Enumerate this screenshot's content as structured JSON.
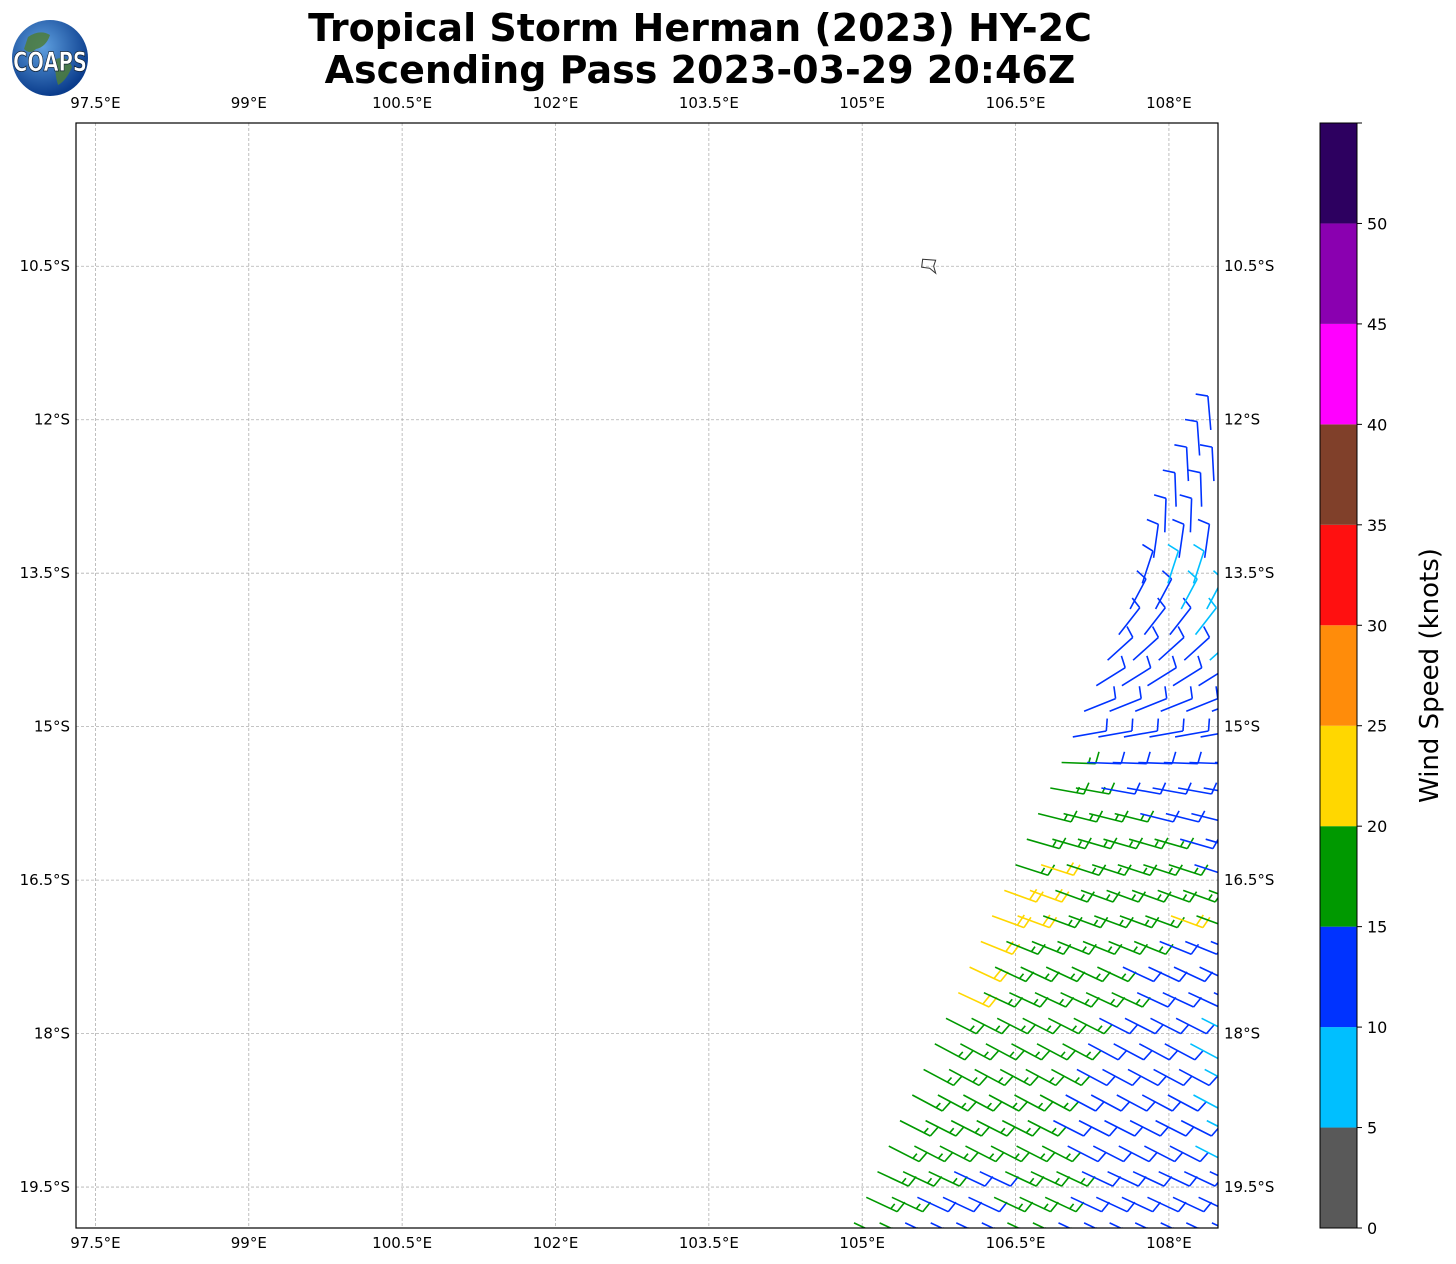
{
  "title": {
    "line1": "Tropical Storm Herman (2023) HY-2C",
    "line2": "Ascending Pass 2023-03-29 20:46Z"
  },
  "logo": {
    "text": "COAPS"
  },
  "map": {
    "lon_range": [
      97.31,
      108.48
    ],
    "lat_range": [
      -19.9,
      -9.1
    ],
    "lon_ticks": [
      {
        "v": 97.5,
        "label": "97.5°E"
      },
      {
        "v": 99,
        "label": "99°E"
      },
      {
        "v": 100.5,
        "label": "100.5°E"
      },
      {
        "v": 102,
        "label": "102°E"
      },
      {
        "v": 103.5,
        "label": "103.5°E"
      },
      {
        "v": 105,
        "label": "105°E"
      },
      {
        "v": 106.5,
        "label": "106.5°E"
      },
      {
        "v": 108,
        "label": "108°E"
      }
    ],
    "lat_ticks": [
      {
        "v": -10.5,
        "label": "10.5°S"
      },
      {
        "v": -12,
        "label": "12°S"
      },
      {
        "v": -13.5,
        "label": "13.5°S"
      },
      {
        "v": -15,
        "label": "15°S"
      },
      {
        "v": -16.5,
        "label": "16.5°S"
      },
      {
        "v": -18,
        "label": "18°S"
      },
      {
        "v": -19.5,
        "label": "19.5°S"
      }
    ],
    "grid": true,
    "land": [
      {
        "name": "Christmas Island",
        "lon": 105.65,
        "lat": -10.49
      }
    ]
  },
  "wind_barbs": {
    "units": "knots",
    "lon_spacing": 0.25,
    "rows": [
      {
        "lat": -19.85,
        "lon0": 104.92,
        "dir": 115,
        "kt": [
          17,
          17,
          12,
          12,
          12,
          12,
          17,
          17,
          12,
          12,
          12,
          12,
          12,
          12,
          12
        ]
      },
      {
        "lat": -19.6,
        "lon0": 105.04,
        "dir": 115,
        "kt": [
          17,
          17,
          12,
          12,
          12,
          17,
          17,
          17,
          12,
          12,
          12,
          12,
          12,
          12
        ]
      },
      {
        "lat": -19.35,
        "lon0": 105.15,
        "dir": 115,
        "kt": [
          17,
          17,
          17,
          12,
          12,
          17,
          17,
          17,
          12,
          12,
          12,
          12,
          12,
          12
        ]
      },
      {
        "lat": -19.1,
        "lon0": 105.26,
        "dir": 117,
        "kt": [
          17,
          17,
          17,
          17,
          17,
          17,
          17,
          12,
          12,
          12,
          12,
          12,
          8
        ]
      },
      {
        "lat": -18.85,
        "lon0": 105.37,
        "dir": 117,
        "kt": [
          17,
          17,
          17,
          17,
          17,
          17,
          12,
          12,
          12,
          12,
          12,
          12,
          8
        ]
      },
      {
        "lat": -18.6,
        "lon0": 105.49,
        "dir": 118,
        "kt": [
          17,
          17,
          17,
          17,
          17,
          17,
          12,
          12,
          12,
          12,
          12,
          8
        ]
      },
      {
        "lat": -18.35,
        "lon0": 105.6,
        "dir": 118,
        "kt": [
          17,
          17,
          17,
          17,
          17,
          17,
          12,
          12,
          12,
          12,
          12,
          8
        ]
      },
      {
        "lat": -18.1,
        "lon0": 105.71,
        "dir": 118,
        "kt": [
          17,
          17,
          17,
          17,
          17,
          17,
          12,
          12,
          12,
          12,
          8
        ]
      },
      {
        "lat": -17.85,
        "lon0": 105.82,
        "dir": 117,
        "kt": [
          17,
          17,
          17,
          17,
          17,
          17,
          12,
          12,
          12,
          12,
          8
        ]
      },
      {
        "lat": -17.6,
        "lon0": 105.94,
        "dir": 115,
        "kt": [
          22,
          17,
          17,
          17,
          17,
          17,
          17,
          12,
          12,
          12,
          12
        ]
      },
      {
        "lat": -17.35,
        "lon0": 106.05,
        "dir": 115,
        "kt": [
          22,
          17,
          17,
          17,
          17,
          17,
          12,
          12,
          12,
          12
        ]
      },
      {
        "lat": -17.1,
        "lon0": 106.16,
        "dir": 112,
        "kt": [
          22,
          17,
          17,
          17,
          17,
          17,
          17,
          12,
          12,
          12
        ]
      },
      {
        "lat": -16.85,
        "lon0": 106.27,
        "dir": 110,
        "kt": [
          22,
          22,
          17,
          17,
          17,
          17,
          17,
          22,
          17
        ]
      },
      {
        "lat": -16.6,
        "lon0": 106.39,
        "dir": 110,
        "kt": [
          22,
          22,
          17,
          17,
          17,
          17,
          17,
          17,
          17
        ]
      },
      {
        "lat": -16.35,
        "lon0": 106.5,
        "dir": 108,
        "kt": [
          17,
          22,
          17,
          17,
          17,
          17,
          17,
          12
        ]
      },
      {
        "lat": -16.1,
        "lon0": 106.61,
        "dir": 106,
        "kt": [
          17,
          17,
          17,
          17,
          17,
          17,
          12,
          12
        ]
      },
      {
        "lat": -15.85,
        "lon0": 106.72,
        "dir": 104,
        "kt": [
          17,
          17,
          17,
          17,
          12,
          12,
          12
        ]
      },
      {
        "lat": -15.6,
        "lon0": 106.84,
        "dir": 100,
        "kt": [
          17,
          17,
          12,
          12,
          12,
          12,
          12
        ]
      },
      {
        "lat": -15.35,
        "lon0": 106.95,
        "dir": 92,
        "kt": [
          17,
          12,
          12,
          12,
          12,
          12,
          12
        ]
      },
      {
        "lat": -15.1,
        "lon0": 107.06,
        "dir": 80,
        "kt": [
          12,
          12,
          12,
          12,
          12,
          12
        ]
      },
      {
        "lat": -14.85,
        "lon0": 107.17,
        "dir": 68,
        "kt": [
          12,
          12,
          12,
          12,
          12,
          12
        ]
      },
      {
        "lat": -14.6,
        "lon0": 107.29,
        "dir": 58,
        "kt": [
          12,
          12,
          12,
          12,
          12
        ]
      },
      {
        "lat": -14.35,
        "lon0": 107.4,
        "dir": 48,
        "kt": [
          12,
          12,
          12,
          12,
          8
        ]
      },
      {
        "lat": -14.1,
        "lon0": 107.51,
        "dir": 38,
        "kt": [
          12,
          12,
          12,
          8
        ]
      },
      {
        "lat": -13.85,
        "lon0": 107.62,
        "dir": 28,
        "kt": [
          12,
          12,
          8,
          8
        ]
      },
      {
        "lat": -13.6,
        "lon0": 107.74,
        "dir": 18,
        "kt": [
          12,
          8,
          8
        ]
      },
      {
        "lat": -13.35,
        "lon0": 107.85,
        "dir": 8,
        "kt": [
          12,
          12,
          12
        ]
      },
      {
        "lat": -13.1,
        "lon0": 107.96,
        "dir": 2,
        "kt": [
          12,
          12
        ]
      },
      {
        "lat": -12.85,
        "lon0": 108.07,
        "dir": 358,
        "kt": [
          12,
          12
        ]
      },
      {
        "lat": -12.6,
        "lon0": 108.19,
        "dir": 357,
        "kt": [
          12,
          12
        ]
      },
      {
        "lat": -12.35,
        "lon0": 108.3,
        "dir": 356,
        "kt": [
          12
        ]
      },
      {
        "lat": -12.1,
        "lon0": 108.41,
        "dir": 355,
        "kt": [
          12
        ]
      }
    ]
  },
  "colorbar": {
    "label": "Wind Speed (knots)",
    "range": [
      0,
      55
    ],
    "ticks": [
      0,
      5,
      10,
      15,
      20,
      25,
      30,
      35,
      40,
      45,
      50
    ],
    "bins": [
      {
        "from": 0,
        "to": 5,
        "color": "#595959"
      },
      {
        "from": 5,
        "to": 10,
        "color": "#00bfff"
      },
      {
        "from": 10,
        "to": 15,
        "color": "#0033ff"
      },
      {
        "from": 15,
        "to": 20,
        "color": "#009900"
      },
      {
        "from": 20,
        "to": 25,
        "color": "#ffd700"
      },
      {
        "from": 25,
        "to": 30,
        "color": "#ff8c0a"
      },
      {
        "from": 30,
        "to": 35,
        "color": "#ff1010"
      },
      {
        "from": 35,
        "to": 40,
        "color": "#80402a"
      },
      {
        "from": 40,
        "to": 45,
        "color": "#ff00ff"
      },
      {
        "from": 45,
        "to": 50,
        "color": "#8a00b0"
      },
      {
        "from": 50,
        "to": 55,
        "color": "#2d0060"
      }
    ]
  }
}
